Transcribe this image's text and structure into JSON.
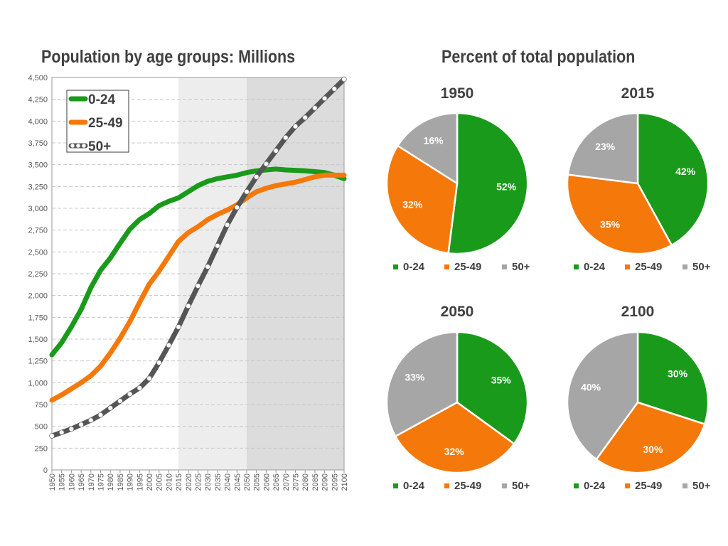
{
  "chart_data": [
    {
      "type": "line",
      "title": "Population by age groups: Millions",
      "xlabel": "",
      "ylabel": "",
      "ylim": [
        0,
        4500
      ],
      "yticks": [
        0,
        250,
        500,
        750,
        1000,
        1250,
        1500,
        1750,
        2000,
        2250,
        2500,
        2750,
        3000,
        3250,
        3500,
        3750,
        4000,
        4250,
        4500
      ],
      "ytick_labels": [
        "0",
        "250",
        "500",
        "750",
        "1,000",
        "1,250",
        "1,500",
        "1,750",
        "2,000",
        "2,250",
        "2,500",
        "2,750",
        "3,000",
        "3,250",
        "3,500",
        "3,750",
        "4,000",
        "4,250",
        "4,500"
      ],
      "x": [
        1950,
        1955,
        1960,
        1965,
        1970,
        1975,
        1980,
        1985,
        1990,
        1995,
        2000,
        2005,
        2010,
        2015,
        2020,
        2025,
        2030,
        2035,
        2040,
        2045,
        2050,
        2055,
        2060,
        2065,
        2070,
        2075,
        2080,
        2085,
        2090,
        2095,
        2100
      ],
      "grid": true,
      "legend_position": "top-left",
      "shaded_regions": [
        {
          "from": 2015,
          "to": 2050,
          "color": "#ededed"
        },
        {
          "from": 2050,
          "to": 2100,
          "color": "#dcdcdc"
        }
      ],
      "series": [
        {
          "name": "0-24",
          "color": "#1a9a1a",
          "values": [
            1320,
            1460,
            1640,
            1840,
            2090,
            2290,
            2430,
            2600,
            2760,
            2870,
            2940,
            3030,
            3080,
            3120,
            3190,
            3260,
            3310,
            3340,
            3360,
            3380,
            3410,
            3430,
            3440,
            3450,
            3440,
            3435,
            3430,
            3420,
            3410,
            3380,
            3340
          ]
        },
        {
          "name": "25-49",
          "color": "#f5780a",
          "values": [
            800,
            860,
            930,
            1000,
            1080,
            1190,
            1340,
            1510,
            1700,
            1920,
            2130,
            2280,
            2450,
            2620,
            2720,
            2790,
            2870,
            2930,
            2980,
            3040,
            3120,
            3190,
            3230,
            3260,
            3280,
            3300,
            3330,
            3360,
            3380,
            3380,
            3380
          ]
        },
        {
          "name": "50+",
          "color": "#555555",
          "values": [
            390,
            430,
            470,
            520,
            570,
            630,
            710,
            790,
            870,
            940,
            1050,
            1230,
            1430,
            1640,
            1880,
            2110,
            2330,
            2570,
            2810,
            3010,
            3190,
            3360,
            3510,
            3660,
            3810,
            3940,
            4040,
            4150,
            4260,
            4370,
            4480
          ]
        }
      ]
    },
    {
      "type": "pie",
      "title": "1950",
      "categories": [
        "0-24",
        "25-49",
        "50+"
      ],
      "values": [
        52,
        32,
        16
      ],
      "labels": [
        "52%",
        "32%",
        "16%"
      ]
    },
    {
      "type": "pie",
      "title": "2015",
      "categories": [
        "0-24",
        "25-49",
        "50+"
      ],
      "values": [
        42,
        35,
        23
      ],
      "labels": [
        "42%",
        "35%",
        "23%"
      ]
    },
    {
      "type": "pie",
      "title": "2050",
      "categories": [
        "0-24",
        "25-49",
        "50+"
      ],
      "values": [
        35,
        32,
        33
      ],
      "labels": [
        "35%",
        "32%",
        "33%"
      ]
    },
    {
      "type": "pie",
      "title": "2100",
      "categories": [
        "0-24",
        "25-49",
        "50+"
      ],
      "values": [
        30,
        30,
        40
      ],
      "labels": [
        "30%",
        "30%",
        "40%"
      ]
    }
  ],
  "pie_section_title": "Percent of total population",
  "pie_colors": [
    "#1a9a1a",
    "#f5780a",
    "#a6a6a6"
  ],
  "pie_legend": [
    "0-24",
    "25-49",
    "50+"
  ]
}
